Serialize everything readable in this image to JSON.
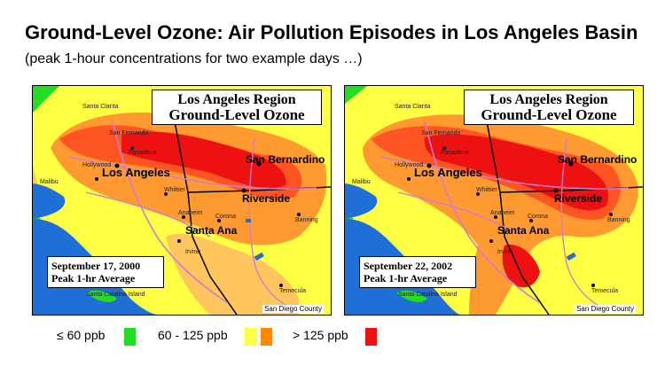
{
  "title": "Ground-Level Ozone: Air Pollution Episodes in Los Angeles Basin",
  "subtitle": "(peak 1-hour concentrations for two example days …)",
  "maps": [
    {
      "title_line1": "Los Angeles Region",
      "title_line2": "Ground-Level Ozone",
      "date": "September 17, 2000",
      "measure": "Peak 1-hr Average",
      "county": "San Diego County",
      "places": {
        "los_angeles": "Los Angeles",
        "santa_ana": "Santa Ana",
        "san_bernardino": "San Bernardino",
        "riverside": "Riverside",
        "pasadena": "Pasadena",
        "hollywood": "Hollywood",
        "whittier": "Whittier",
        "anaheim": "Anaheim",
        "corona": "Corona",
        "irvine": "Irvine",
        "banning": "Banning",
        "temecula": "Temecula",
        "santa_catalina": "Santa Catalina Island",
        "malibu": "Malibu",
        "san_fernando": "San Fernando",
        "santa_clarita": "Santa Clarita"
      }
    },
    {
      "title_line1": "Los Angeles Region",
      "title_line2": "Ground-Level Ozone",
      "date": "September 22, 2002",
      "measure": "Peak 1-hr Average",
      "county": "San Diego County",
      "places": {
        "los_angeles": "Los Angeles",
        "santa_ana": "Santa Ana",
        "san_bernardino": "San Bernardino",
        "riverside": "Riverside",
        "pasadena": "Pasadena",
        "hollywood": "Hollywood",
        "whittier": "Whittier",
        "anaheim": "Anaheim",
        "corona": "Corona",
        "irvine": "Irvine",
        "banning": "Banning",
        "temecula": "Temecula",
        "santa_catalina": "Santa Catalina Island",
        "malibu": "Malibu",
        "san_fernando": "San Fernando",
        "santa_clarita": "Santa Clarita"
      }
    }
  ],
  "legend": [
    {
      "label": "≤ 60 ppb",
      "colors": [
        "#22dd22"
      ]
    },
    {
      "label": "60 - 125 ppb",
      "colors": [
        "#ffff44",
        "#ff8800"
      ]
    },
    {
      "label": "> 125 ppb",
      "colors": [
        "#ee1111"
      ]
    }
  ],
  "colors": {
    "ocean": "#1f6fd6",
    "low": "#22dd22",
    "moderate_light": "#ffff44",
    "moderate_dark": "#ff8800",
    "high": "#ee1111"
  }
}
